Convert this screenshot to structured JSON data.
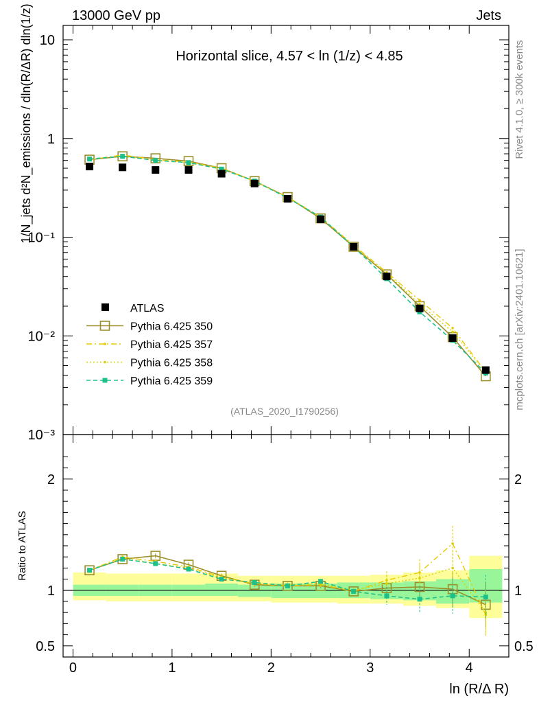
{
  "header": {
    "left": "13000 GeV pp",
    "right": "Jets",
    "slice_title": "Horizontal slice, 4.57 < ln (1/z) < 4.85",
    "analysis_id": "(ATLAS_2020_I1790256)",
    "rivet_label": "Rivet 4.1.0, ≥ 300k events",
    "mcplots_label": "mcplots.cern.ch [arXiv:2401.10621]"
  },
  "axes": {
    "xlabel": "ln (R/Δ R)",
    "ratio_ylabel": "Ratio to ATLAS",
    "main_ylabel": "1/N_jets d²N_emissions / dln(R/ΔR) dln(1/z)",
    "x_ticks": [
      "0",
      "1",
      "2",
      "3",
      "4"
    ],
    "y_ticks": [
      "10⁻³",
      "10⁻²",
      "10⁻¹",
      "1",
      "10"
    ],
    "ratio_ticks": [
      "0.5",
      "1",
      "2"
    ]
  },
  "colors": {
    "data": "#000000",
    "p350": "#9a8f2a",
    "p357": "#e8c800",
    "p358": "#d8d000",
    "p359": "#1ec08a",
    "band_inner": "#99f599",
    "band_outer": "#fdfd9a"
  },
  "chart_data": {
    "type": "line",
    "x": [
      0.167,
      0.5,
      0.833,
      1.167,
      1.5,
      1.833,
      2.167,
      2.5,
      2.833,
      3.167,
      3.5,
      3.833,
      4.167
    ],
    "xlim": [
      -0.1,
      4.4
    ],
    "ylim": [
      0.001,
      14
    ],
    "ratio_ylim": [
      0.4,
      2.4
    ],
    "yscale": "log",
    "series": [
      {
        "name": "ATLAS",
        "style": "data",
        "values": [
          0.52,
          0.51,
          0.48,
          0.48,
          0.44,
          0.35,
          0.245,
          0.152,
          0.08,
          0.04,
          0.019,
          0.0095,
          0.0045
        ],
        "band_inner": [
          [
            0.95,
            1.05
          ],
          [
            0.95,
            1.05
          ],
          [
            0.95,
            1.05
          ],
          [
            0.95,
            1.05
          ],
          [
            0.95,
            1.06
          ],
          [
            0.94,
            1.05
          ],
          [
            0.93,
            1.06
          ],
          [
            0.93,
            1.06
          ],
          [
            0.93,
            1.07
          ],
          [
            0.92,
            1.07
          ],
          [
            0.91,
            1.08
          ],
          [
            0.88,
            1.1
          ],
          [
            0.89,
            1.19
          ]
        ],
        "band_outer": [
          [
            0.91,
            1.16
          ],
          [
            0.9,
            1.15
          ],
          [
            0.9,
            1.15
          ],
          [
            0.9,
            1.15
          ],
          [
            0.9,
            1.15
          ],
          [
            0.9,
            1.13
          ],
          [
            0.89,
            1.13
          ],
          [
            0.89,
            1.13
          ],
          [
            0.88,
            1.13
          ],
          [
            0.88,
            1.14
          ],
          [
            0.86,
            1.16
          ],
          [
            0.84,
            1.18
          ],
          [
            0.75,
            1.31
          ]
        ]
      },
      {
        "name": "Pythia 6.425 350",
        "style": "open-square",
        "values": [
          0.61,
          0.66,
          0.63,
          0.59,
          0.5,
          0.37,
          0.255,
          0.155,
          0.08,
          0.042,
          0.02,
          0.0097,
          0.0039
        ],
        "ratio": [
          1.18,
          1.28,
          1.31,
          1.23,
          1.13,
          1.05,
          1.04,
          1.04,
          0.99,
          1.02,
          1.03,
          1.01,
          0.87
        ]
      },
      {
        "name": "Pythia 6.425 357",
        "style": "dash-dot",
        "values": [
          0.61,
          0.68,
          0.61,
          0.58,
          0.5,
          0.37,
          0.255,
          0.16,
          0.083,
          0.044,
          0.023,
          0.012,
          0.0043
        ],
        "ratio": [
          1.18,
          1.3,
          1.26,
          1.21,
          1.12,
          1.06,
          1.04,
          1.05,
          0.99,
          1.09,
          1.16,
          1.42,
          0.78
        ]
      },
      {
        "name": "Pythia 6.425 358",
        "style": "dotted",
        "values": [
          0.62,
          0.66,
          0.6,
          0.57,
          0.49,
          0.37,
          0.255,
          0.158,
          0.082,
          0.043,
          0.021,
          0.011,
          0.0043
        ],
        "ratio": [
          1.18,
          1.29,
          1.24,
          1.2,
          1.11,
          1.06,
          1.05,
          1.06,
          1.0,
          1.06,
          1.11,
          1.2,
          0.8
        ]
      },
      {
        "name": "Pythia 6.425 359",
        "style": "dashed-square",
        "values": [
          0.62,
          0.66,
          0.6,
          0.57,
          0.49,
          0.37,
          0.25,
          0.16,
          0.08,
          0.038,
          0.0175,
          0.009,
          0.0042
        ],
        "ratio": [
          1.18,
          1.28,
          1.24,
          1.19,
          1.1,
          1.07,
          1.04,
          1.08,
          0.99,
          0.95,
          0.92,
          0.95,
          0.94
        ]
      }
    ]
  }
}
